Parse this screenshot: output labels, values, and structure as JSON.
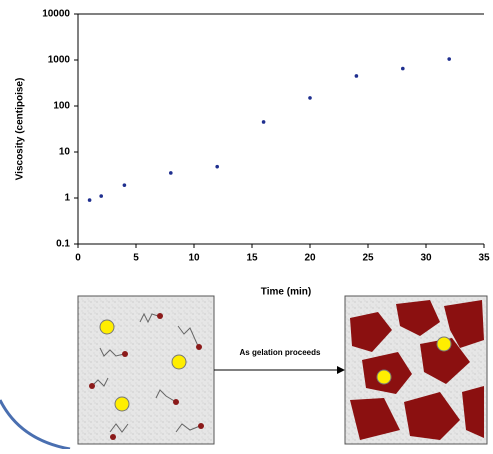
{
  "chart_data": {
    "type": "scatter",
    "x": [
      1,
      2,
      4,
      8,
      12,
      16,
      20,
      24,
      28,
      32
    ],
    "values": [
      0.9,
      1.1,
      1.9,
      3.5,
      4.8,
      45,
      150,
      450,
      650,
      1050
    ],
    "color": "#1f2f8f",
    "xlim": [
      0,
      35
    ],
    "xticks": [
      0,
      5,
      10,
      15,
      20,
      25,
      30,
      35
    ],
    "ylim": [
      0.1,
      10000
    ],
    "yticks": [
      0.1,
      1,
      10,
      100,
      1000,
      10000
    ],
    "log_scale": true,
    "grid": false,
    "x_label": "Time (min)",
    "y_label": "Viscosity (centipoise)"
  },
  "diagram": {
    "arrow_label": "As gelation proceeds"
  }
}
